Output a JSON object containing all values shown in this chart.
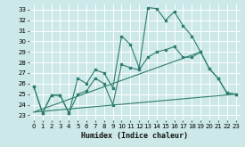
{
  "xlabel": "Humidex (Indice chaleur)",
  "bg_color": "#cce8e8",
  "grid_color": "#ffffff",
  "line_color": "#2e7d6e",
  "xlim": [
    -0.5,
    23.5
  ],
  "ylim": [
    22.5,
    33.5
  ],
  "xticks": [
    0,
    1,
    2,
    3,
    4,
    5,
    6,
    7,
    8,
    9,
    10,
    11,
    12,
    13,
    14,
    15,
    16,
    17,
    18,
    19,
    20,
    21,
    22,
    23
  ],
  "yticks": [
    23,
    24,
    25,
    26,
    27,
    28,
    29,
    30,
    31,
    32,
    33
  ],
  "line1_x": [
    0,
    1,
    2,
    3,
    4,
    5,
    6,
    7,
    8,
    9,
    10,
    11,
    12,
    13,
    14,
    15,
    16,
    17,
    18,
    19,
    20,
    21,
    22,
    23
  ],
  "line1_y": [
    25.7,
    23.2,
    24.9,
    24.9,
    23.2,
    26.5,
    26.0,
    27.3,
    27.0,
    25.6,
    30.5,
    29.7,
    27.5,
    33.2,
    33.1,
    32.0,
    32.8,
    31.5,
    30.5,
    29.0,
    27.4,
    26.5,
    25.1,
    25.0
  ],
  "line2_x": [
    0,
    1,
    2,
    3,
    4,
    5,
    6,
    7,
    8,
    9,
    10,
    11,
    12,
    13,
    14,
    15,
    16,
    17,
    18,
    19,
    20,
    21,
    22,
    23
  ],
  "line2_y": [
    25.7,
    23.2,
    24.9,
    24.9,
    23.2,
    25.0,
    25.3,
    26.5,
    26.0,
    24.0,
    27.8,
    27.5,
    27.3,
    28.5,
    29.0,
    29.2,
    29.5,
    28.5,
    28.5,
    29.0,
    27.4,
    26.5,
    25.1,
    25.0
  ],
  "trend1_x": [
    0,
    23
  ],
  "trend1_y": [
    23.3,
    25.0
  ],
  "trend2_x": [
    0,
    19
  ],
  "trend2_y": [
    23.3,
    29.0
  ]
}
